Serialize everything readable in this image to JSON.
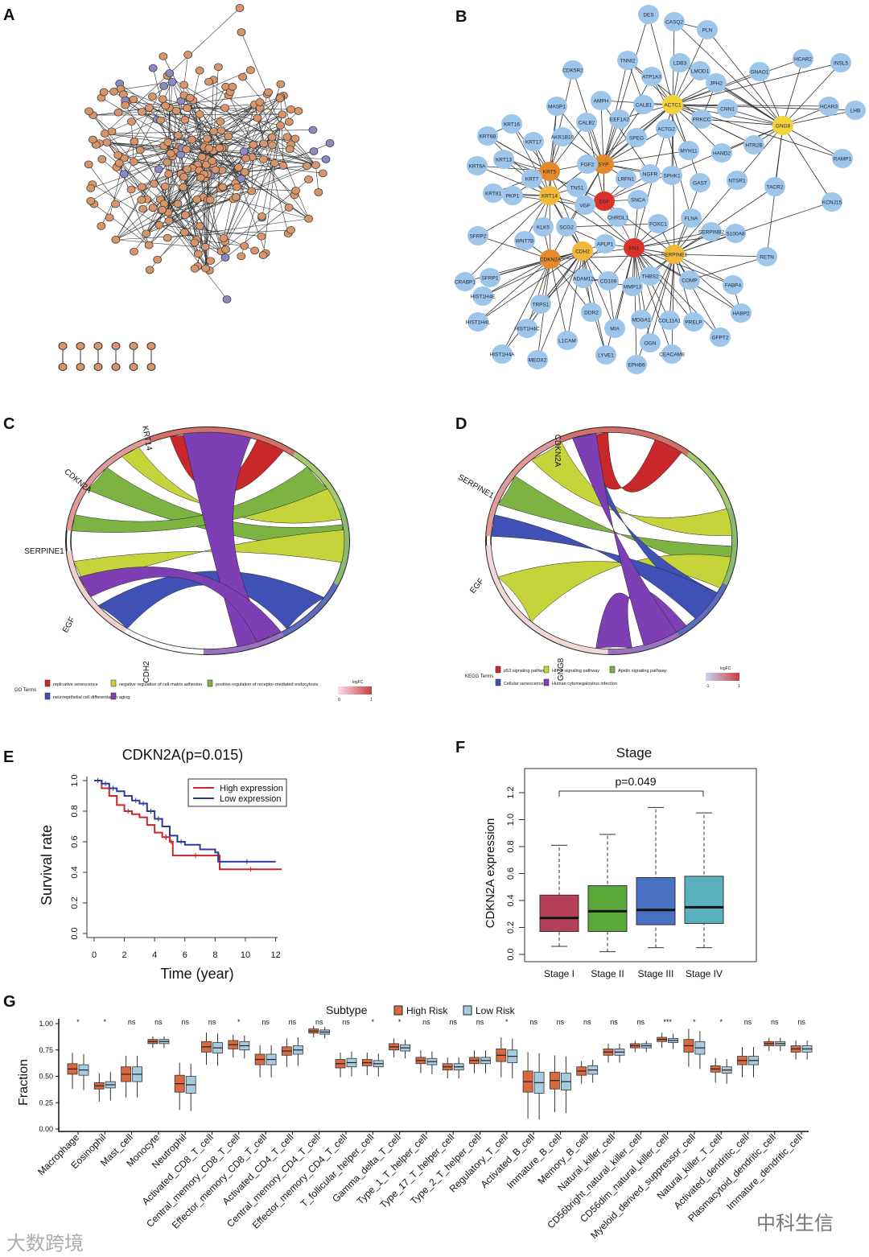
{
  "panels": {
    "a": "A",
    "b": "B",
    "c": "C",
    "d": "D",
    "e": "E",
    "f": "F",
    "g": "G"
  },
  "network_b": {
    "nodes": [
      "DES",
      "CASQ2",
      "PLN",
      "CDK5R2",
      "TNNI2",
      "LDB3",
      "LMOD1",
      "HCAR2",
      "INSL5",
      "GNAO1",
      "ATP1A3",
      "JPH2",
      "MASP1",
      "AMPH",
      "ACTC1",
      "CNN1",
      "HCAR3",
      "LHB",
      "CALB1",
      "KRT16",
      "EEF1A2",
      "CALB2",
      "PRKCC",
      "ACTG2",
      "GNG8",
      "KRT6B",
      "KRT17",
      "AKR1B10",
      "SPEG",
      "MYH11",
      "HAND2",
      "HTR2B",
      "RAMP1",
      "KRT6A",
      "KRT13",
      "SYP",
      "FGF2",
      "KRT5",
      "KRT7",
      "NGFR",
      "SPHK1",
      "NTSR1",
      "TNS1",
      "GAST",
      "TACR2",
      "KCNJ15",
      "KRT81",
      "PKP1",
      "KRT14",
      "LRFN1",
      "EGF",
      "SNCA",
      "VGF",
      "CHRDL1",
      "FLNA",
      "FOXC1",
      "SERPINB2",
      "S100A8",
      "SFRP2",
      "WNT7B",
      "KLK5",
      "SCG2",
      "APLP1",
      "FN1",
      "SERPINE1",
      "CDH2",
      "RETN",
      "CDKN2A",
      "ADAM12",
      "CD109",
      "MMP13",
      "THBS2",
      "COMP",
      "CRABP1",
      "SFRP1",
      "FABP4",
      "HIST1H4E",
      "TRPS1",
      "DDR2",
      "MDGA1",
      "COL11A1",
      "PRELP",
      "HABP2",
      "HIST1H4L",
      "HIST1H4C",
      "MIA",
      "GFPT2",
      "L1CAM",
      "OGN",
      "HIST1H4A",
      "LYVE1",
      "CEACAM8",
      "MEOX2",
      "EPHB6"
    ],
    "colors": {
      "default": "#9ec6ea",
      "yellow": "#f2d33a",
      "orange": "#e58a2c",
      "red": "#d8322a",
      "hub_yellow": "#f0b93a"
    }
  },
  "chord_c": {
    "genes": [
      "KRT14",
      "CDKN2A",
      "SERPINE1",
      "EGF",
      "CDH2"
    ],
    "legend_title": "GO Terms",
    "terms": [
      {
        "label": "replicative senescence",
        "color": "#c8282a"
      },
      {
        "label": "negative regulation of cell-matrix adhesion",
        "color": "#c4d43a"
      },
      {
        "label": "positive regulation of receptor-mediated endocytosis",
        "color": "#7cb342"
      },
      {
        "label": "neuroepithelial cell differentiation",
        "color": "#3f51b5"
      },
      {
        "label": "aging",
        "color": "#7e3fb5"
      }
    ],
    "scale_title": "logFC",
    "scale_min": "0",
    "scale_max": "1"
  },
  "chord_d": {
    "genes": [
      "CDKN2A",
      "SERPINE1",
      "EGF",
      "GNG8"
    ],
    "legend_title": "KEGG Terms",
    "terms": [
      {
        "label": "p53 signaling pathway",
        "color": "#c8282a"
      },
      {
        "label": "HIF-1 signaling pathway",
        "color": "#c4d43a"
      },
      {
        "label": "Apelin signaling pathway",
        "color": "#7cb342"
      },
      {
        "label": "Cellular senescence",
        "color": "#3f51b5"
      },
      {
        "label": "Human cytomegalovirus infection",
        "color": "#7e3fb5"
      }
    ],
    "scale_title": "logFC",
    "scale_min": "-1",
    "scale_max": "1"
  },
  "chart_data": [
    {
      "type": "line",
      "title": "CDKN2A(p=0.015)",
      "xlabel": "Time (year)",
      "ylabel": "Survival rate",
      "xlim": [
        0,
        12
      ],
      "ylim": [
        0,
        1
      ],
      "xticks": [
        "0",
        "2",
        "4",
        "6",
        "8",
        "10",
        "12"
      ],
      "yticks": [
        "0.0",
        "0.2",
        "0.4",
        "0.6",
        "0.8",
        "1.0"
      ],
      "legend_position": "top-right",
      "series": [
        {
          "name": "High expression",
          "color": "#c8282a",
          "x": [
            0,
            0.5,
            1,
            1.5,
            2,
            2.5,
            3,
            3.5,
            4,
            4.5,
            5,
            5.2,
            8.2,
            8.3,
            12.4
          ],
          "y": [
            1,
            0.95,
            0.9,
            0.84,
            0.8,
            0.78,
            0.76,
            0.71,
            0.66,
            0.63,
            0.6,
            0.51,
            0.51,
            0.42,
            0.42
          ]
        },
        {
          "name": "Low expression",
          "color": "#2b3a9c",
          "x": [
            0,
            0.5,
            1,
            1.5,
            2,
            2.5,
            3,
            3.5,
            4,
            4.5,
            5,
            5.5,
            6,
            7,
            8,
            8.2,
            12
          ],
          "y": [
            1,
            0.98,
            0.95,
            0.93,
            0.9,
            0.87,
            0.85,
            0.8,
            0.75,
            0.7,
            0.64,
            0.6,
            0.58,
            0.55,
            0.53,
            0.47,
            0.47
          ]
        }
      ]
    },
    {
      "type": "box",
      "title": "Stage",
      "ylabel": "CDKN2A expression",
      "ylim": [
        0,
        1.2
      ],
      "yticks": [
        "0.0",
        "0.2",
        "0.4",
        "0.6",
        "0.8",
        "1.0",
        "1.2"
      ],
      "annotation": "p=0.049",
      "categories": [
        "Stage I",
        "Stage II",
        "Stage III",
        "Stage IV"
      ],
      "colors": [
        "#b5405a",
        "#5aa83a",
        "#4a70c4",
        "#5bb0c0"
      ],
      "boxes": [
        [
          0.06,
          0.17,
          0.27,
          0.44,
          0.81
        ],
        [
          0.02,
          0.17,
          0.32,
          0.51,
          0.89
        ],
        [
          0.05,
          0.22,
          0.33,
          0.57,
          1.09
        ],
        [
          0.05,
          0.23,
          0.35,
          0.58,
          1.05
        ]
      ]
    },
    {
      "type": "box",
      "legend_title": "Subtype",
      "ylabel": "Fraction",
      "ylim": [
        0,
        1
      ],
      "yticks": [
        "0.00",
        "0.25",
        "0.50",
        "0.75",
        "1.00"
      ],
      "legend_position": "top",
      "series": [
        {
          "name": "High Risk",
          "color": "#d9693f"
        },
        {
          "name": "Low Risk",
          "color": "#a9cbe0"
        }
      ],
      "categories": [
        "Macrophage",
        "Eosinophil",
        "Mast_cell",
        "Monocyte",
        "Neutrophil",
        "Activated_CD8_T_cell",
        "Central_memory_CD8_T_cell",
        "Effector_memory_CD8_T_cell",
        "Activated_CD4_T_cell",
        "Central_memory_CD4_T_cell",
        "Effector_memory_CD4_T_cell",
        "T_follicular_helper_cell",
        "Gamma_delta_T_cell",
        "Type_1_T_helper_cell",
        "Type_17_T_helper_cell",
        "Type_2_T_helper_cell",
        "Regulatory_T_cell",
        "Activated_B_cell",
        "Immature_B_cell",
        "Memory_B_cell",
        "Natural_killer_cell",
        "CD56bright_natural_killer_cell",
        "CD56dim_natural_killer_cell",
        "Myeloid_derived_suppressor_cell",
        "Natural_killer_T_cell",
        "Activated_dendritic_cell",
        "Plasmacytoid_dendritic_cell",
        "Immature_dendritic_cell"
      ],
      "significance": [
        "*",
        "*",
        "ns",
        "ns",
        "ns",
        "ns",
        "*",
        "ns",
        "ns",
        "ns",
        "ns",
        "*",
        "*",
        "ns",
        "ns",
        "ns",
        "*",
        "ns",
        "ns",
        "ns",
        "ns",
        "ns",
        "***",
        "*",
        "*",
        "ns",
        "ns",
        "ns"
      ],
      "medians_high": [
        0.57,
        0.41,
        0.52,
        0.83,
        0.43,
        0.78,
        0.8,
        0.66,
        0.74,
        0.93,
        0.62,
        0.63,
        0.78,
        0.65,
        0.59,
        0.65,
        0.7,
        0.45,
        0.46,
        0.55,
        0.73,
        0.79,
        0.85,
        0.79,
        0.57,
        0.65,
        0.81,
        0.76
      ],
      "medians_low": [
        0.56,
        0.42,
        0.52,
        0.83,
        0.42,
        0.77,
        0.79,
        0.66,
        0.75,
        0.92,
        0.63,
        0.62,
        0.77,
        0.64,
        0.59,
        0.65,
        0.69,
        0.44,
        0.45,
        0.56,
        0.73,
        0.79,
        0.84,
        0.77,
        0.56,
        0.65,
        0.81,
        0.76
      ],
      "iqr_half": [
        0.05,
        0.03,
        0.07,
        0.02,
        0.08,
        0.05,
        0.04,
        0.05,
        0.04,
        0.02,
        0.04,
        0.03,
        0.03,
        0.03,
        0.03,
        0.03,
        0.06,
        0.1,
        0.08,
        0.04,
        0.03,
        0.02,
        0.02,
        0.06,
        0.03,
        0.04,
        0.02,
        0.03
      ],
      "whisker_half": [
        0.19,
        0.15,
        0.22,
        0.06,
        0.25,
        0.17,
        0.12,
        0.17,
        0.15,
        0.06,
        0.13,
        0.12,
        0.1,
        0.12,
        0.11,
        0.12,
        0.21,
        0.35,
        0.3,
        0.12,
        0.1,
        0.06,
        0.08,
        0.2,
        0.13,
        0.16,
        0.07,
        0.1
      ]
    }
  ],
  "watermarks": {
    "left": "大数跨境",
    "right": "中科生信"
  }
}
